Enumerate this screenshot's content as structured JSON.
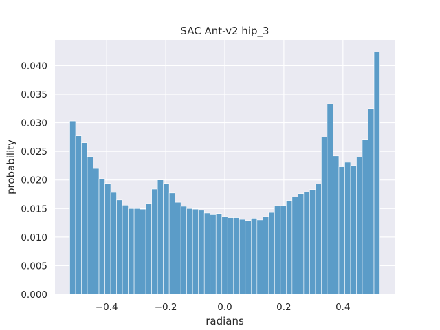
{
  "chart_data": {
    "type": "bar",
    "title": "SAC Ant-v2 hip_3",
    "xlabel": "radians",
    "ylabel": "probability",
    "xlim": [
      -0.575,
      0.575
    ],
    "ylim": [
      0,
      0.0445
    ],
    "xticks": [
      -0.4,
      -0.2,
      0.0,
      0.2,
      0.4
    ],
    "xtick_labels": [
      "−0.4",
      "−0.2",
      "0.0",
      "0.2",
      "0.4"
    ],
    "yticks": [
      0.0,
      0.005,
      0.01,
      0.015,
      0.02,
      0.025,
      0.03,
      0.035,
      0.04
    ],
    "ytick_labels": [
      "0.000",
      "0.005",
      "0.010",
      "0.015",
      "0.020",
      "0.025",
      "0.030",
      "0.035",
      "0.040"
    ],
    "grid": true,
    "background": "#eaeaf2",
    "bar_color": "#5b9cc8",
    "bin_edges_range": [
      -0.525,
      0.525
    ],
    "values": [
      0.0303,
      0.0277,
      0.0265,
      0.0241,
      0.022,
      0.0202,
      0.0194,
      0.0178,
      0.0165,
      0.0156,
      0.015,
      0.015,
      0.0149,
      0.0158,
      0.0184,
      0.02,
      0.0194,
      0.0177,
      0.0161,
      0.0154,
      0.015,
      0.0149,
      0.0147,
      0.0142,
      0.0139,
      0.0141,
      0.0136,
      0.0134,
      0.0134,
      0.0131,
      0.0129,
      0.0133,
      0.013,
      0.0136,
      0.0143,
      0.0155,
      0.0155,
      0.0164,
      0.017,
      0.0176,
      0.0179,
      0.0183,
      0.0193,
      0.0275,
      0.0333,
      0.0242,
      0.0223,
      0.0231,
      0.0225,
      0.024,
      0.0271,
      0.0325,
      0.0424
    ]
  }
}
